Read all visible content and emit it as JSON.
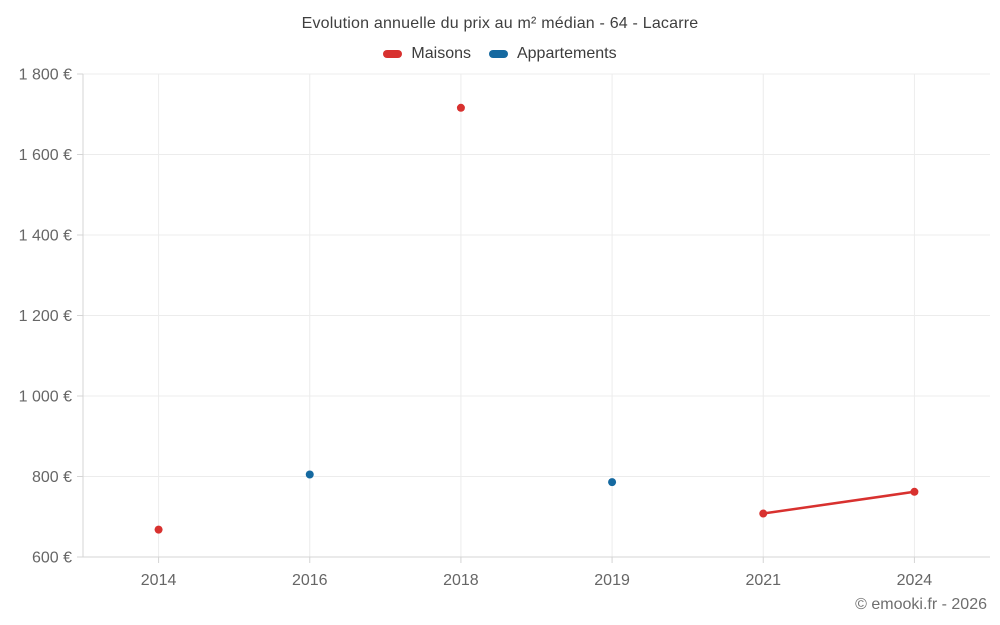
{
  "chart_data": {
    "type": "line",
    "title": "Evolution annuelle du prix au m² médian - 64 - Lacarre",
    "categories": [
      "2014",
      "2016",
      "2018",
      "2019",
      "2021",
      "2024"
    ],
    "series": [
      {
        "name": "Maisons",
        "color": "#d8312f",
        "values": [
          668,
          null,
          1716,
          null,
          708,
          762
        ]
      },
      {
        "name": "Appartements",
        "color": "#1569a0",
        "values": [
          null,
          805,
          null,
          786,
          null,
          null
        ]
      }
    ],
    "y_axis": {
      "min": 600,
      "max": 1800,
      "step": 200,
      "tick_labels": [
        "600 €",
        "800 €",
        "1 000 €",
        "1 200 €",
        "1 400 €",
        "1 600 €",
        "1 800 €"
      ]
    },
    "grid": true,
    "legend_position": "top",
    "marker_radius": 4,
    "line_width": 2.5
  },
  "footer": {
    "copyright": "© emooki.fr - 2026"
  },
  "colors": {
    "grid": "#ececec",
    "axis": "#d4d4d4",
    "tick_text": "#666666",
    "title_text": "#3f3f3f",
    "legend_text": "#3c3c3c",
    "footer_text": "#6e6e6e"
  }
}
